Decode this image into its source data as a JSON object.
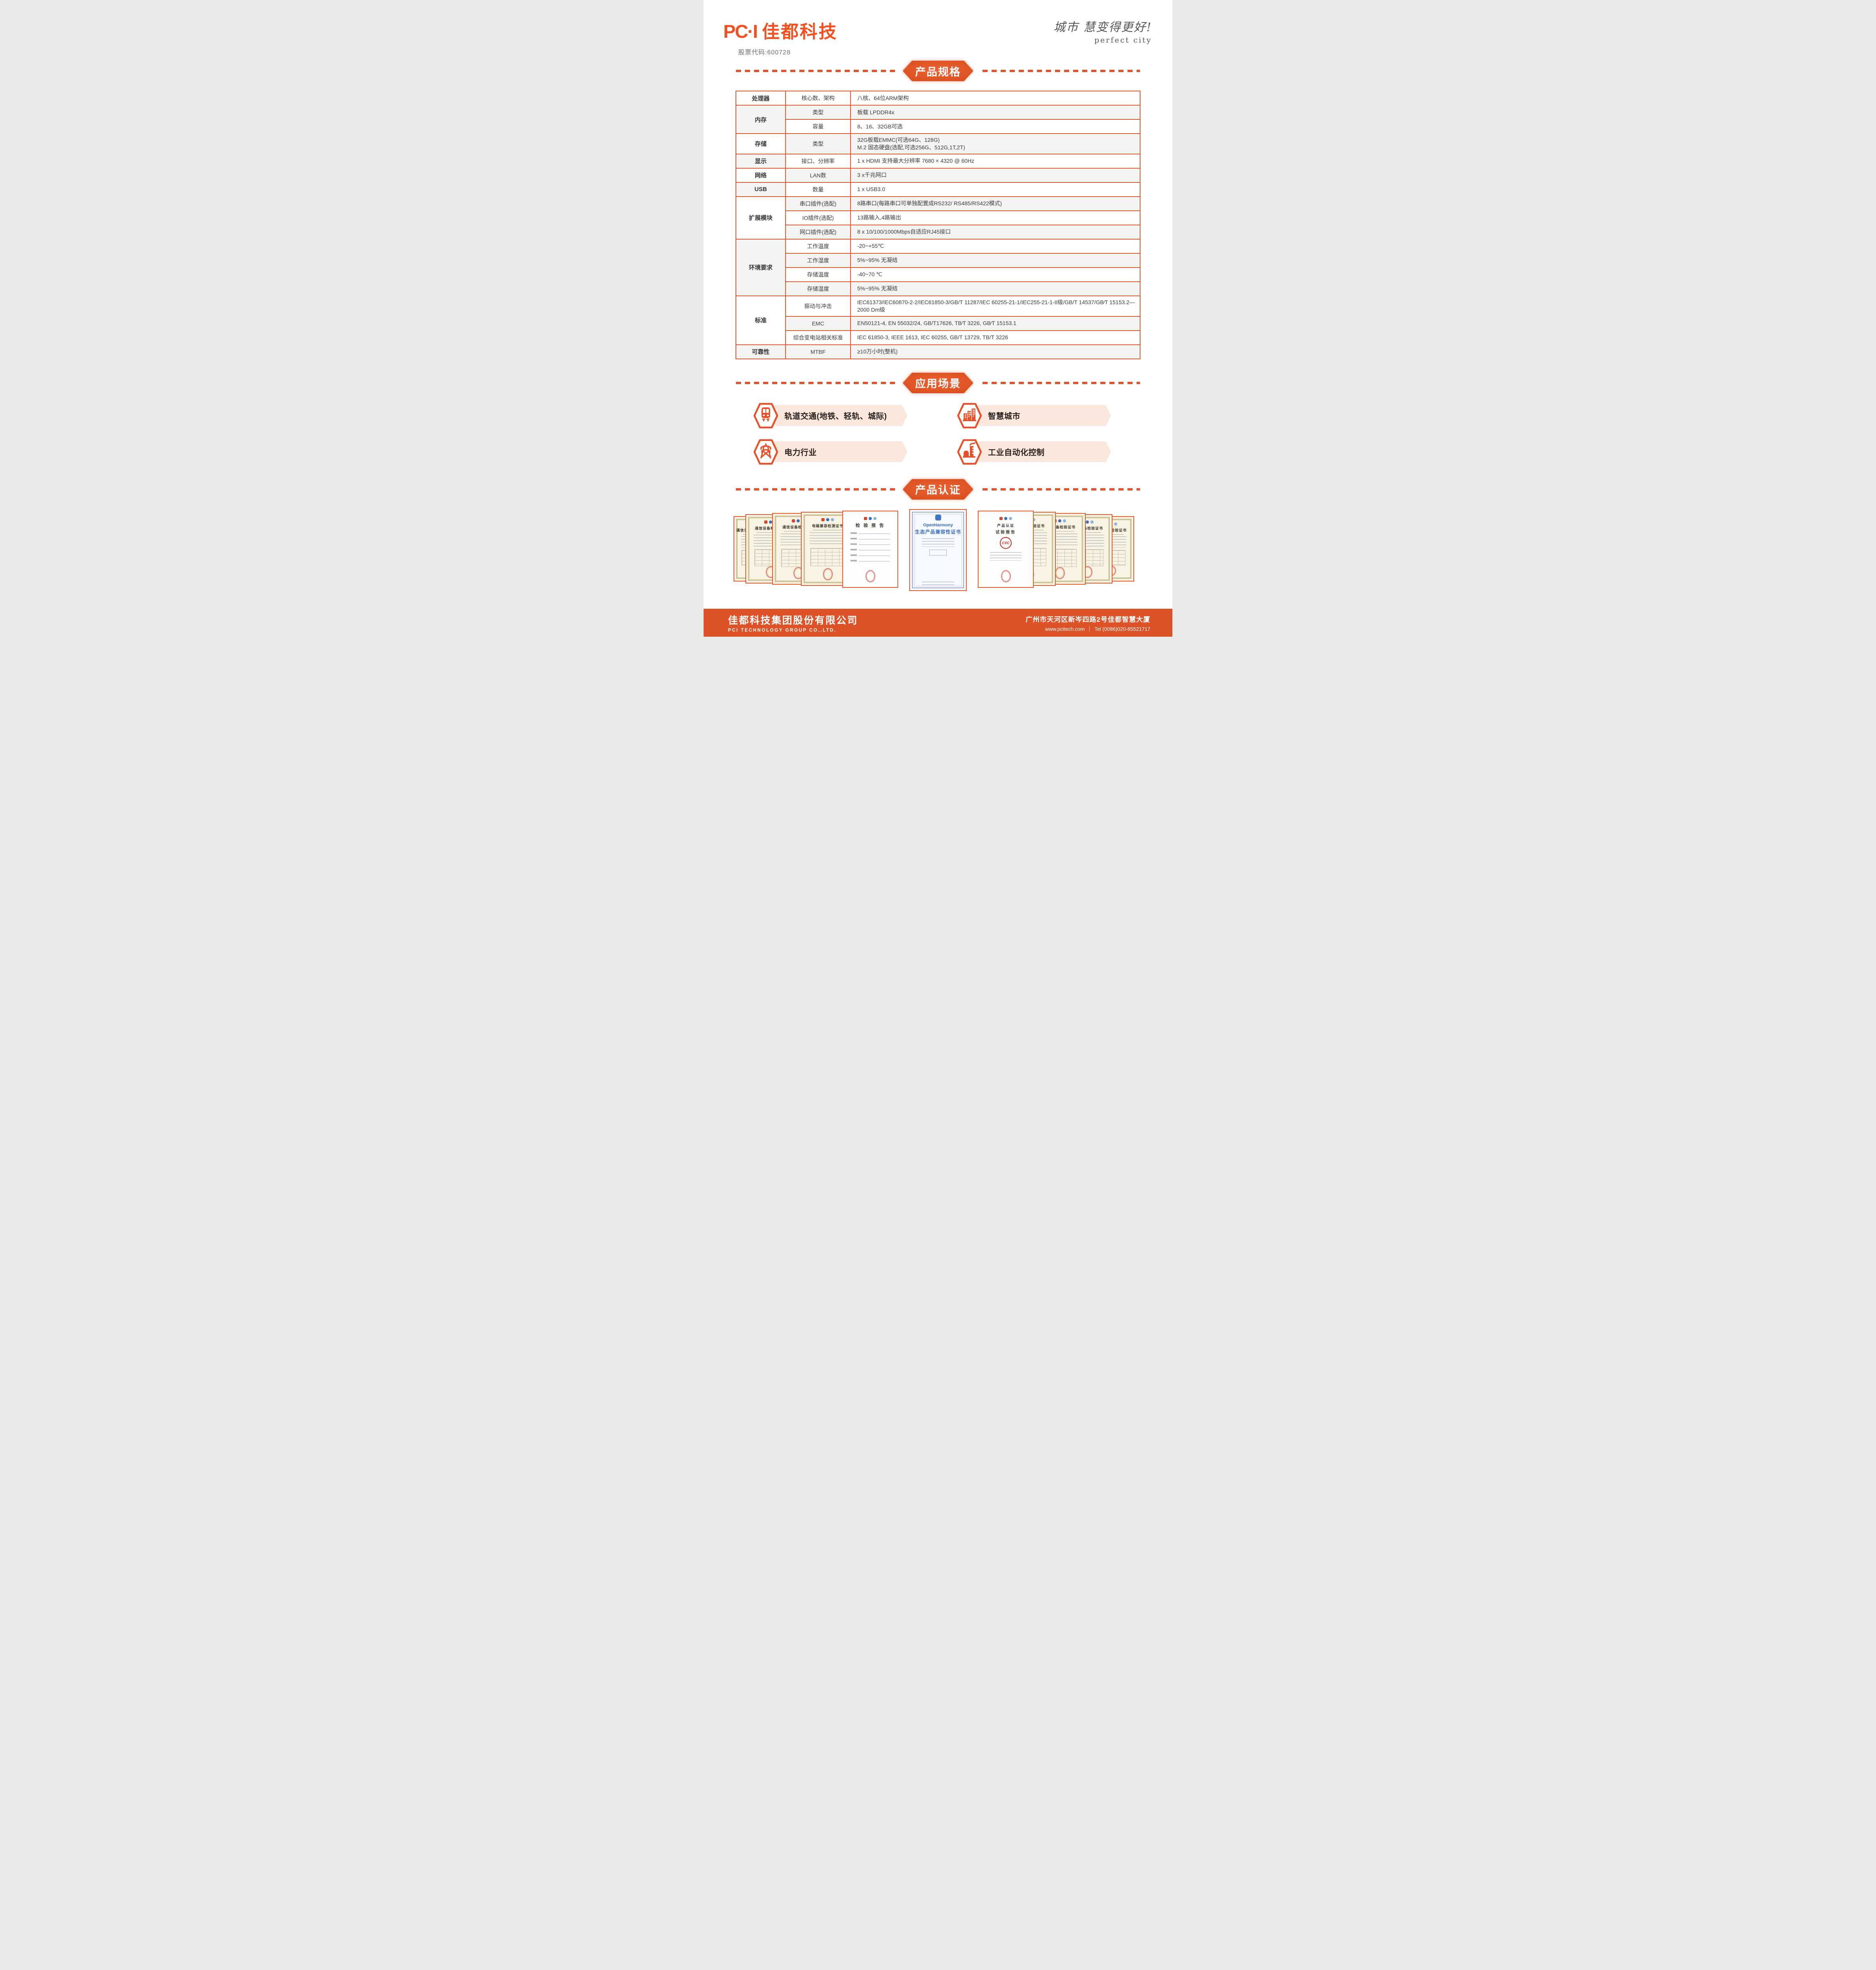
{
  "header": {
    "logo_pci": "PC·I",
    "logo_cn": "佳都科技",
    "stock_code": "股票代码:600728",
    "slogan_cn": "城市 慧变得更好!",
    "slogan_en": "perfect city"
  },
  "sections": {
    "spec": "产品规格",
    "apps": "应用场景",
    "certs": "产品认证"
  },
  "spec_table": {
    "groups": [
      {
        "label": "处理器",
        "rows": [
          {
            "name": "核心数、架构",
            "value": "八核、64位ARM架构"
          }
        ]
      },
      {
        "label": "内存",
        "rows": [
          {
            "name": "类型",
            "value": "板载 LPDDR4x"
          },
          {
            "name": "容量",
            "value": "8、16、32GB可选"
          }
        ]
      },
      {
        "label": "存储",
        "rows": [
          {
            "name": "类型",
            "value": "32G板载EMMC(可选64G、128G)\nM.2 固态硬盘(选配,可选256G、512G,1T,2T)"
          }
        ]
      },
      {
        "label": "显示",
        "rows": [
          {
            "name": "接口、分辨率",
            "value": "1 x HDMI 支持最大分辨率 7680 × 4320 @ 60Hz"
          }
        ]
      },
      {
        "label": "网络",
        "rows": [
          {
            "name": "LAN数",
            "value": "3 x千兆网口"
          }
        ]
      },
      {
        "label": "USB",
        "rows": [
          {
            "name": "数量",
            "value": "1 x USB3.0"
          }
        ]
      },
      {
        "label": "扩展模块",
        "rows": [
          {
            "name": "串口插件(选配)",
            "value": "8路串口(每路串口可单独配置成RS232/ RS485/RS422模式)"
          },
          {
            "name": "IO插件(选配)",
            "value": "13路输入,4路输出"
          },
          {
            "name": "网口插件(选配)",
            "value": "8 x 10/100/1000Mbps自适应RJ45接口"
          }
        ]
      },
      {
        "label": "环境要求",
        "rows": [
          {
            "name": "工作温度",
            "value": "-20~+55℃"
          },
          {
            "name": "工作湿度",
            "value": "5%~95% 无凝结"
          },
          {
            "name": "存储温度",
            "value": "-40~70 ℃"
          },
          {
            "name": "存储湿度",
            "value": "5%~95% 无凝结"
          }
        ]
      },
      {
        "label": "标准",
        "rows": [
          {
            "name": "振动与冲击",
            "value": "IEC61373/IEC60870-2-2/IEC61850-3/GB/T 11287/IEC 60255-21-1/IEC255-21-1-II级/GB/T 14537/GB∕T 15153.2—2000 Dm级"
          },
          {
            "name": "EMC",
            "value": "EN50121-4, EN 55032/24, GB/T17626, TB∕T 3226, GB∕T 15153.1"
          },
          {
            "name": "综合变电站相关标准",
            "value": "IEC 61850-3, IEEE 1613, IEC 60255, GB/T 13729, TB/T 3226"
          }
        ]
      },
      {
        "label": "可靠性",
        "rows": [
          {
            "name": "MTBF",
            "value": "≥10万小时(整机)"
          }
        ]
      }
    ]
  },
  "applications": [
    {
      "icon": "train-icon",
      "label": "轨道交通(地铁、轻轨、城际)"
    },
    {
      "icon": "buildings-icon",
      "label": "智慧城市"
    },
    {
      "icon": "power-tower-icon",
      "label": "电力行业"
    },
    {
      "icon": "factory-icon",
      "label": "工业自动化控制"
    }
  ],
  "certificates": [
    {
      "type": "gold",
      "title": "通信设备检验证书"
    },
    {
      "type": "gold",
      "title": "通信设备检验证书"
    },
    {
      "type": "gold",
      "title": "通信设备检验证书"
    },
    {
      "type": "gold",
      "title": "电磁兼容检测证书"
    },
    {
      "type": "report",
      "title": "检 验 报 告"
    },
    {
      "type": "openharmony",
      "title_en": "OpenHarmony",
      "title_cn": "生态产品兼容性证书"
    },
    {
      "type": "cvc",
      "subtitle": "产品认证",
      "title": "试验报告",
      "stamp": "CVC"
    },
    {
      "type": "gold",
      "title": "通信设备检验证书"
    },
    {
      "type": "gold",
      "title": "通信设备检验证书"
    },
    {
      "type": "gold",
      "title": "通信设备检验证书"
    },
    {
      "type": "gold",
      "title": "通信设备检验证书"
    }
  ],
  "footer": {
    "company_cn": "佳都科技集团股份有限公司",
    "company_en": "PCI TECHNOLOGY GROUP CO.,LTD.",
    "address": "广州市天河区新岑四路2号佳都智慧大厦",
    "website": "www.pcitech.com",
    "tel": "Tel (0086)020-85521717"
  },
  "colors": {
    "brand_orange": "#e8502a",
    "banner_orange_center": "#ea6233",
    "banner_orange_edge": "#d94d1e",
    "table_border": "#dc5b30",
    "band_peach": "#fbe8dd",
    "footer_orange": "#dd5226",
    "row_shade": "#f4f4f4",
    "text_dark": "#3b3b3b"
  }
}
